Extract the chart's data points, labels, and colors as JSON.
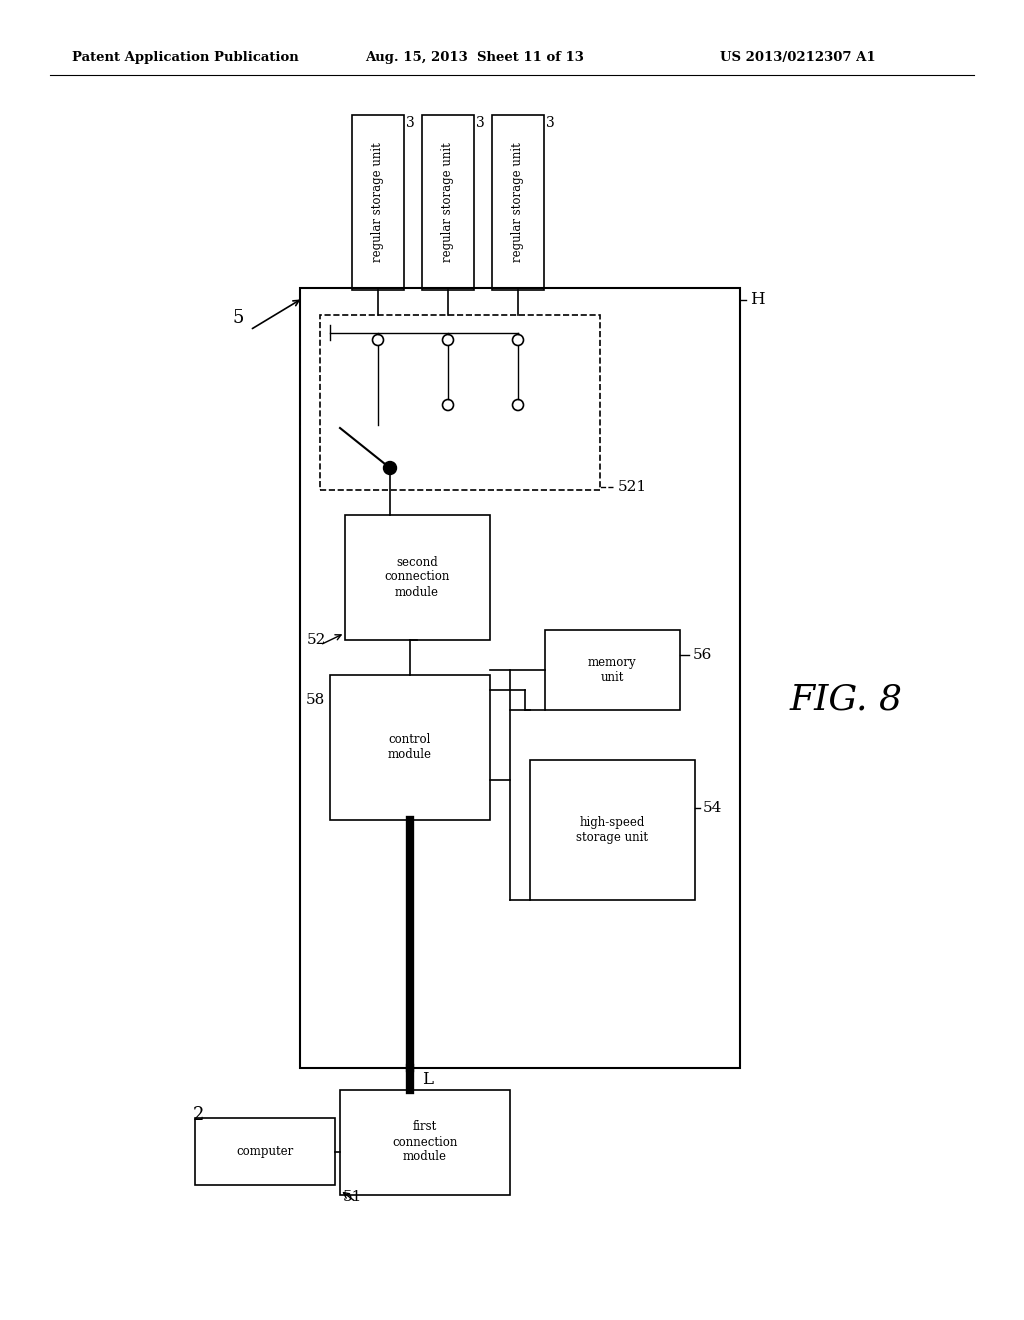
{
  "bg_color": "#ffffff",
  "header_left": "Patent Application Publication",
  "header_mid": "Aug. 15, 2013  Sheet 11 of 13",
  "header_right": "US 2013/0212307 A1",
  "fig_label": "FIG. 8",
  "label_5": "5",
  "label_H": "H",
  "label_L": "L",
  "label_521": "521",
  "label_52": "52",
  "label_58": "58",
  "label_56": "56",
  "label_54": "54",
  "label_51": "51",
  "label_2": "2",
  "box_second_conn": "second\nconnection\nmodule",
  "box_control": "control\nmodule",
  "box_memory": "memory\nunit",
  "box_high_speed": "high-speed\nstorage unit",
  "box_first_conn": "first\nconnection\nmodule",
  "box_computer": "computer",
  "storage_label": "regular storage unit",
  "storage_number": "3"
}
